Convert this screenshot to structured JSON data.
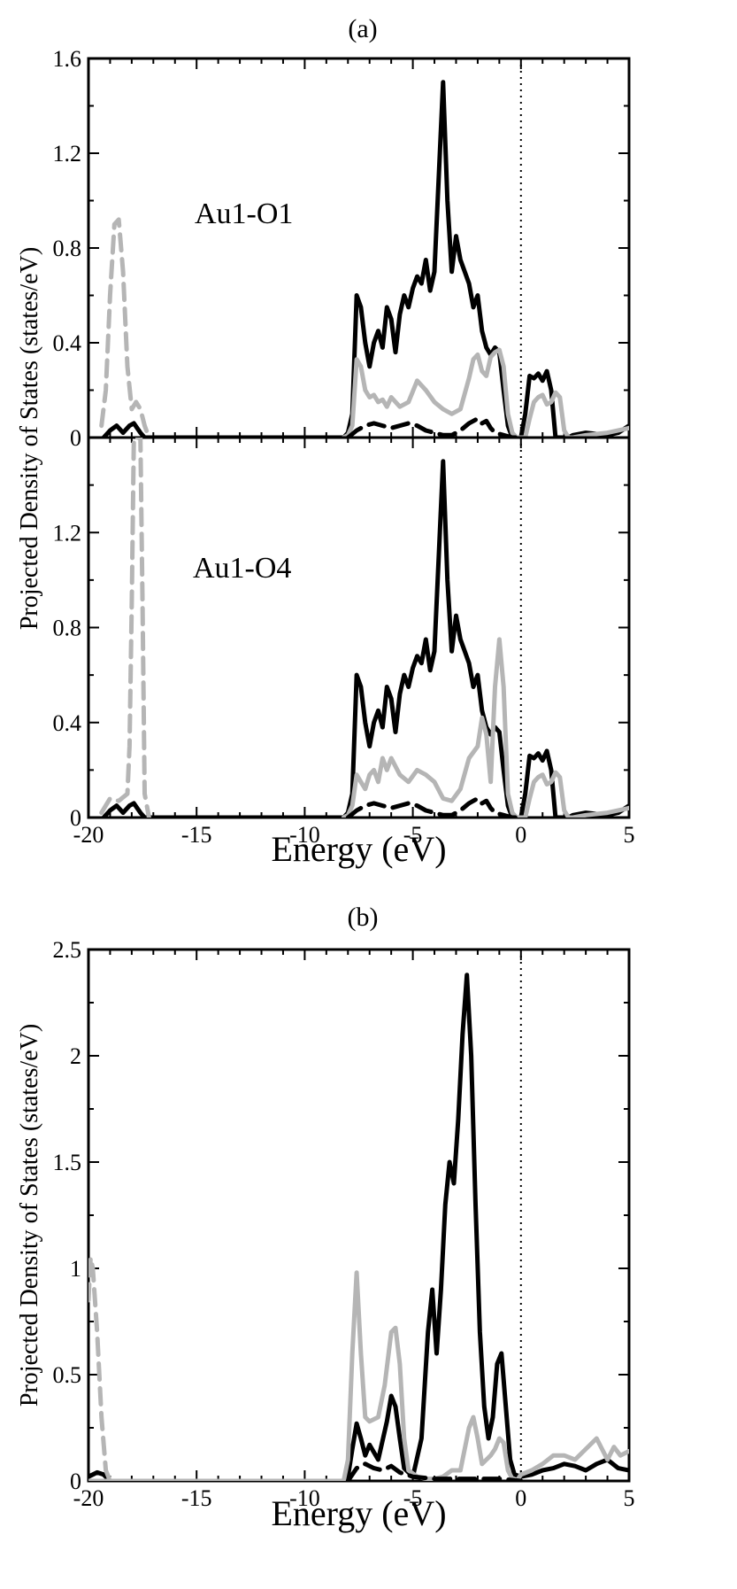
{
  "figure": {
    "panel_a_label": "(a)",
    "panel_b_label": "(b)"
  },
  "colors": {
    "black_series": "#000000",
    "gray_series": "#b5b5b5"
  },
  "chart_data": [
    {
      "type": "line",
      "id": "a_top",
      "annotation": "Au1-O1",
      "ylabel": "Projected Density of States (states/eV)",
      "xlabel": "",
      "xlim": [
        -20,
        5
      ],
      "ylim": [
        0,
        1.6
      ],
      "x_ticks": [
        -20,
        -15,
        -10,
        -5,
        0,
        5
      ],
      "x_tick_labels": [],
      "y_ticks": [
        0,
        0.4,
        0.8,
        1.2,
        1.6
      ],
      "y_tick_labels": [
        "0",
        "0.4",
        "0.8",
        "1.2",
        "1.6"
      ],
      "fermi_level": 0,
      "series": [
        {
          "style": "solid",
          "color": "black",
          "x": [
            -19.3,
            -19.0,
            -18.7,
            -18.4,
            -18.1,
            -17.9,
            -17.6,
            -17.4,
            -8.2,
            -8.0,
            -7.8,
            -7.6,
            -7.4,
            -7.2,
            -7.0,
            -6.8,
            -6.6,
            -6.4,
            -6.2,
            -6.0,
            -5.8,
            -5.6,
            -5.4,
            -5.2,
            -5.0,
            -4.8,
            -4.6,
            -4.4,
            -4.2,
            -4.0,
            -3.8,
            -3.6,
            -3.4,
            -3.2,
            -3.0,
            -2.8,
            -2.6,
            -2.4,
            -2.2,
            -2.0,
            -1.8,
            -1.6,
            -1.4,
            -1.2,
            -1.0,
            -0.8,
            -0.6,
            -0.4,
            -0.2,
            0.0,
            0.2,
            0.4,
            0.6,
            0.8,
            1.0,
            1.2,
            1.4,
            1.6,
            1.8,
            2.0,
            2.2,
            2.4,
            3.0,
            4.0,
            4.5,
            5.0
          ],
          "y": [
            0.0,
            0.03,
            0.05,
            0.02,
            0.05,
            0.06,
            0.02,
            0.0,
            0.0,
            0.02,
            0.1,
            0.6,
            0.55,
            0.4,
            0.3,
            0.4,
            0.45,
            0.38,
            0.55,
            0.5,
            0.36,
            0.52,
            0.6,
            0.55,
            0.63,
            0.68,
            0.65,
            0.75,
            0.62,
            0.7,
            1.1,
            1.5,
            1.0,
            0.7,
            0.85,
            0.75,
            0.7,
            0.65,
            0.55,
            0.6,
            0.45,
            0.38,
            0.35,
            0.38,
            0.36,
            0.2,
            0.05,
            0.0,
            0.0,
            0.0,
            0.1,
            0.26,
            0.25,
            0.27,
            0.24,
            0.28,
            0.2,
            0.0,
            0.0,
            0.0,
            0.0,
            0.01,
            0.02,
            0.01,
            0.02,
            0.05
          ]
        },
        {
          "style": "solid",
          "color": "gray",
          "x": [
            -8.2,
            -8.0,
            -7.8,
            -7.6,
            -7.4,
            -7.2,
            -7.0,
            -6.8,
            -6.6,
            -6.4,
            -6.2,
            -6.0,
            -5.6,
            -5.2,
            -4.8,
            -4.4,
            -4.0,
            -3.6,
            -3.2,
            -2.8,
            -2.4,
            -2.2,
            -2.0,
            -1.8,
            -1.6,
            -1.4,
            -1.2,
            -1.0,
            -0.8,
            -0.6,
            -0.4,
            -0.2,
            0.0,
            0.2,
            0.4,
            0.6,
            0.8,
            1.0,
            1.2,
            1.4,
            1.6,
            1.8,
            2.0,
            2.2,
            2.4,
            3.0,
            4.0,
            5.0
          ],
          "y": [
            0.0,
            0.01,
            0.05,
            0.33,
            0.3,
            0.2,
            0.17,
            0.18,
            0.15,
            0.16,
            0.13,
            0.17,
            0.13,
            0.15,
            0.24,
            0.2,
            0.15,
            0.12,
            0.1,
            0.12,
            0.25,
            0.33,
            0.35,
            0.28,
            0.26,
            0.34,
            0.36,
            0.37,
            0.3,
            0.1,
            0.02,
            0.0,
            0.0,
            0.0,
            0.08,
            0.15,
            0.17,
            0.18,
            0.14,
            0.15,
            0.19,
            0.17,
            0.03,
            0.0,
            0.0,
            0.01,
            0.02,
            0.04
          ]
        },
        {
          "style": "dashed",
          "color": "gray",
          "x": [
            -19.4,
            -19.2,
            -19.0,
            -18.8,
            -18.6,
            -18.4,
            -18.2,
            -18.0,
            -17.8,
            -17.6,
            -17.4,
            -17.2
          ],
          "y": [
            0.05,
            0.2,
            0.6,
            0.9,
            0.92,
            0.7,
            0.3,
            0.12,
            0.15,
            0.12,
            0.05,
            0.0
          ]
        },
        {
          "style": "dashed",
          "color": "black",
          "x": [
            -8.0,
            -7.6,
            -7.2,
            -6.8,
            -6.4,
            -6.0,
            -5.6,
            -5.2,
            -4.8,
            -4.4,
            -4.0,
            -3.6,
            -3.2,
            -2.8,
            -2.4,
            -2.2,
            -2.0,
            -1.8,
            -1.6,
            -1.4,
            -1.2,
            -0.8,
            -0.4,
            0.0
          ],
          "y": [
            0.0,
            0.03,
            0.05,
            0.06,
            0.05,
            0.04,
            0.05,
            0.06,
            0.05,
            0.03,
            0.02,
            0.01,
            0.01,
            0.03,
            0.06,
            0.07,
            0.08,
            0.06,
            0.07,
            0.04,
            0.02,
            0.01,
            0.0,
            0.0
          ]
        }
      ]
    },
    {
      "type": "line",
      "id": "a_bottom",
      "annotation": "Au1-O4",
      "ylabel": "",
      "xlabel": "Energy (eV)",
      "xlim": [
        -20,
        5
      ],
      "ylim": [
        0,
        1.6
      ],
      "x_ticks": [
        -20,
        -15,
        -10,
        -5,
        0,
        5
      ],
      "x_tick_labels": [
        "-20",
        "-15",
        "-10",
        "-5",
        "0",
        "5"
      ],
      "y_ticks": [
        0,
        0.4,
        0.8,
        1.2
      ],
      "y_tick_labels": [
        "0",
        "0.4",
        "0.8",
        "1.2"
      ],
      "fermi_level": 0,
      "series": [
        {
          "style": "solid",
          "color": "black",
          "x": [
            -19.3,
            -19.0,
            -18.7,
            -18.4,
            -18.1,
            -17.9,
            -17.6,
            -17.4,
            -8.2,
            -8.0,
            -7.8,
            -7.6,
            -7.4,
            -7.2,
            -7.0,
            -6.8,
            -6.6,
            -6.4,
            -6.2,
            -6.0,
            -5.8,
            -5.6,
            -5.4,
            -5.2,
            -5.0,
            -4.8,
            -4.6,
            -4.4,
            -4.2,
            -4.0,
            -3.8,
            -3.6,
            -3.4,
            -3.2,
            -3.0,
            -2.8,
            -2.6,
            -2.4,
            -2.2,
            -2.0,
            -1.8,
            -1.6,
            -1.4,
            -1.2,
            -1.0,
            -0.8,
            -0.6,
            -0.4,
            -0.2,
            0.0,
            0.2,
            0.4,
            0.6,
            0.8,
            1.0,
            1.2,
            1.4,
            1.6,
            1.8,
            2.0,
            2.2,
            2.4,
            3.0,
            4.0,
            4.5,
            5.0
          ],
          "y": [
            0.0,
            0.03,
            0.05,
            0.02,
            0.05,
            0.06,
            0.02,
            0.0,
            0.0,
            0.02,
            0.1,
            0.6,
            0.55,
            0.4,
            0.3,
            0.4,
            0.45,
            0.38,
            0.55,
            0.5,
            0.36,
            0.52,
            0.6,
            0.55,
            0.63,
            0.68,
            0.65,
            0.75,
            0.62,
            0.7,
            1.1,
            1.5,
            1.0,
            0.7,
            0.85,
            0.75,
            0.7,
            0.65,
            0.55,
            0.6,
            0.45,
            0.38,
            0.35,
            0.38,
            0.36,
            0.2,
            0.05,
            0.0,
            0.0,
            0.0,
            0.1,
            0.26,
            0.25,
            0.27,
            0.24,
            0.28,
            0.2,
            0.0,
            0.0,
            0.0,
            0.0,
            0.01,
            0.02,
            0.01,
            0.02,
            0.05
          ]
        },
        {
          "style": "solid",
          "color": "gray",
          "x": [
            -8.2,
            -8.0,
            -7.8,
            -7.6,
            -7.4,
            -7.2,
            -7.0,
            -6.8,
            -6.6,
            -6.4,
            -6.2,
            -6.0,
            -5.6,
            -5.2,
            -4.8,
            -4.4,
            -4.0,
            -3.6,
            -3.2,
            -2.8,
            -2.4,
            -2.0,
            -1.8,
            -1.6,
            -1.4,
            -1.2,
            -1.0,
            -0.8,
            -0.6,
            -0.4,
            -0.2,
            0.0,
            0.2,
            0.4,
            0.6,
            0.8,
            1.0,
            1.2,
            1.4,
            1.6,
            1.8,
            2.0,
            2.2,
            2.4,
            3.0,
            4.0,
            5.0
          ],
          "y": [
            0.0,
            0.01,
            0.05,
            0.18,
            0.15,
            0.12,
            0.18,
            0.2,
            0.15,
            0.25,
            0.2,
            0.25,
            0.18,
            0.15,
            0.2,
            0.18,
            0.15,
            0.08,
            0.07,
            0.12,
            0.25,
            0.3,
            0.42,
            0.35,
            0.15,
            0.55,
            0.75,
            0.55,
            0.1,
            0.02,
            0.0,
            0.0,
            0.0,
            0.08,
            0.15,
            0.17,
            0.18,
            0.14,
            0.15,
            0.19,
            0.17,
            0.03,
            0.0,
            0.0,
            0.01,
            0.02,
            0.04
          ]
        },
        {
          "style": "dashed",
          "color": "gray",
          "x": [
            -19.4,
            -19.0,
            -18.6,
            -18.2,
            -18.1,
            -18.0,
            -17.9,
            -17.8,
            -17.7,
            -17.6,
            -17.5,
            -17.4,
            -17.2
          ],
          "y": [
            0.02,
            0.08,
            0.07,
            0.1,
            0.3,
            0.9,
            1.6,
            1.6,
            1.6,
            1.6,
            0.9,
            0.1,
            0.0
          ]
        },
        {
          "style": "dashed",
          "color": "black",
          "x": [
            -8.0,
            -7.6,
            -7.2,
            -6.8,
            -6.4,
            -6.0,
            -5.6,
            -5.2,
            -4.8,
            -4.4,
            -4.0,
            -3.6,
            -3.2,
            -2.8,
            -2.4,
            -2.2,
            -2.0,
            -1.8,
            -1.6,
            -1.4,
            -1.2,
            -0.8,
            -0.4,
            0.0
          ],
          "y": [
            0.0,
            0.03,
            0.05,
            0.06,
            0.05,
            0.04,
            0.05,
            0.06,
            0.05,
            0.03,
            0.02,
            0.01,
            0.01,
            0.03,
            0.06,
            0.07,
            0.08,
            0.06,
            0.07,
            0.04,
            0.02,
            0.01,
            0.0,
            0.0
          ]
        }
      ]
    },
    {
      "type": "line",
      "id": "b",
      "annotation": "",
      "ylabel": "Projected Density of States (states/eV)",
      "xlabel": "Energy (eV)",
      "xlim": [
        -20,
        5
      ],
      "ylim": [
        0,
        2.5
      ],
      "x_ticks": [
        -20,
        -15,
        -10,
        -5,
        0,
        5
      ],
      "x_tick_labels": [
        "-20",
        "-15",
        "-10",
        "-5",
        "0",
        "5"
      ],
      "y_ticks": [
        0,
        0.5,
        1,
        1.5,
        2,
        2.5
      ],
      "y_tick_labels": [
        "0",
        "0.5",
        "1",
        "1.5",
        "2",
        "2.5"
      ],
      "fermi_level": 0,
      "series": [
        {
          "style": "solid",
          "color": "black",
          "x": [
            -20.0,
            -19.6,
            -19.3,
            -19.0,
            -8.2,
            -8.0,
            -7.8,
            -7.6,
            -7.4,
            -7.2,
            -7.0,
            -6.6,
            -6.2,
            -6.0,
            -5.8,
            -5.6,
            -5.4,
            -5.0,
            -4.6,
            -4.3,
            -4.1,
            -3.9,
            -3.7,
            -3.5,
            -3.3,
            -3.1,
            -2.9,
            -2.7,
            -2.5,
            -2.3,
            -2.1,
            -1.9,
            -1.7,
            -1.5,
            -1.3,
            -1.1,
            -0.9,
            -0.7,
            -0.5,
            -0.3,
            0.0,
            0.5,
            1.0,
            1.5,
            2.0,
            2.5,
            3.0,
            3.5,
            4.0,
            4.5,
            5.0
          ],
          "y": [
            0.02,
            0.04,
            0.03,
            0.0,
            0.0,
            0.02,
            0.15,
            0.27,
            0.2,
            0.12,
            0.17,
            0.1,
            0.28,
            0.4,
            0.35,
            0.2,
            0.06,
            0.02,
            0.2,
            0.7,
            0.9,
            0.6,
            0.9,
            1.3,
            1.5,
            1.4,
            1.7,
            2.1,
            2.38,
            2.0,
            1.3,
            0.7,
            0.35,
            0.2,
            0.3,
            0.55,
            0.6,
            0.35,
            0.1,
            0.03,
            0.02,
            0.03,
            0.05,
            0.06,
            0.08,
            0.07,
            0.05,
            0.08,
            0.1,
            0.06,
            0.05
          ]
        },
        {
          "style": "solid",
          "color": "gray",
          "x": [
            -20.0,
            -19.8,
            -8.2,
            -8.0,
            -7.8,
            -7.6,
            -7.4,
            -7.2,
            -7.0,
            -6.6,
            -6.3,
            -6.0,
            -5.8,
            -5.6,
            -5.4,
            -5.2,
            -4.8,
            -4.4,
            -4.0,
            -3.6,
            -3.2,
            -2.8,
            -2.4,
            -2.2,
            -2.0,
            -1.8,
            -1.6,
            -1.4,
            -1.2,
            -1.0,
            -0.8,
            -0.6,
            -0.4,
            -0.2,
            0.0,
            0.5,
            1.0,
            1.5,
            2.0,
            2.5,
            3.0,
            3.5,
            4.0,
            4.3,
            4.6,
            5.0
          ],
          "y": [
            0.0,
            0.0,
            0.0,
            0.1,
            0.6,
            0.98,
            0.6,
            0.3,
            0.28,
            0.3,
            0.45,
            0.7,
            0.72,
            0.55,
            0.2,
            0.05,
            0.02,
            0.01,
            0.01,
            0.02,
            0.05,
            0.05,
            0.25,
            0.3,
            0.2,
            0.08,
            0.1,
            0.12,
            0.15,
            0.2,
            0.18,
            0.05,
            0.01,
            0.0,
            0.03,
            0.05,
            0.08,
            0.12,
            0.12,
            0.1,
            0.15,
            0.2,
            0.1,
            0.16,
            0.12,
            0.14
          ]
        },
        {
          "style": "dashed",
          "color": "gray",
          "x": [
            -20.0,
            -19.9,
            -19.8,
            -19.6,
            -19.4,
            -19.2,
            -19.0
          ],
          "y": [
            0.85,
            1.05,
            1.0,
            0.7,
            0.3,
            0.05,
            0.0
          ]
        },
        {
          "style": "dashed",
          "color": "black",
          "x": [
            -8.0,
            -7.6,
            -7.2,
            -6.8,
            -6.4,
            -6.0,
            -5.6,
            -5.0,
            -4.0,
            -3.0,
            -2.0,
            -1.0,
            0.0
          ],
          "y": [
            0.0,
            0.06,
            0.08,
            0.06,
            0.05,
            0.07,
            0.04,
            0.02,
            0.01,
            0.01,
            0.01,
            0.01,
            0.0
          ]
        }
      ]
    }
  ]
}
